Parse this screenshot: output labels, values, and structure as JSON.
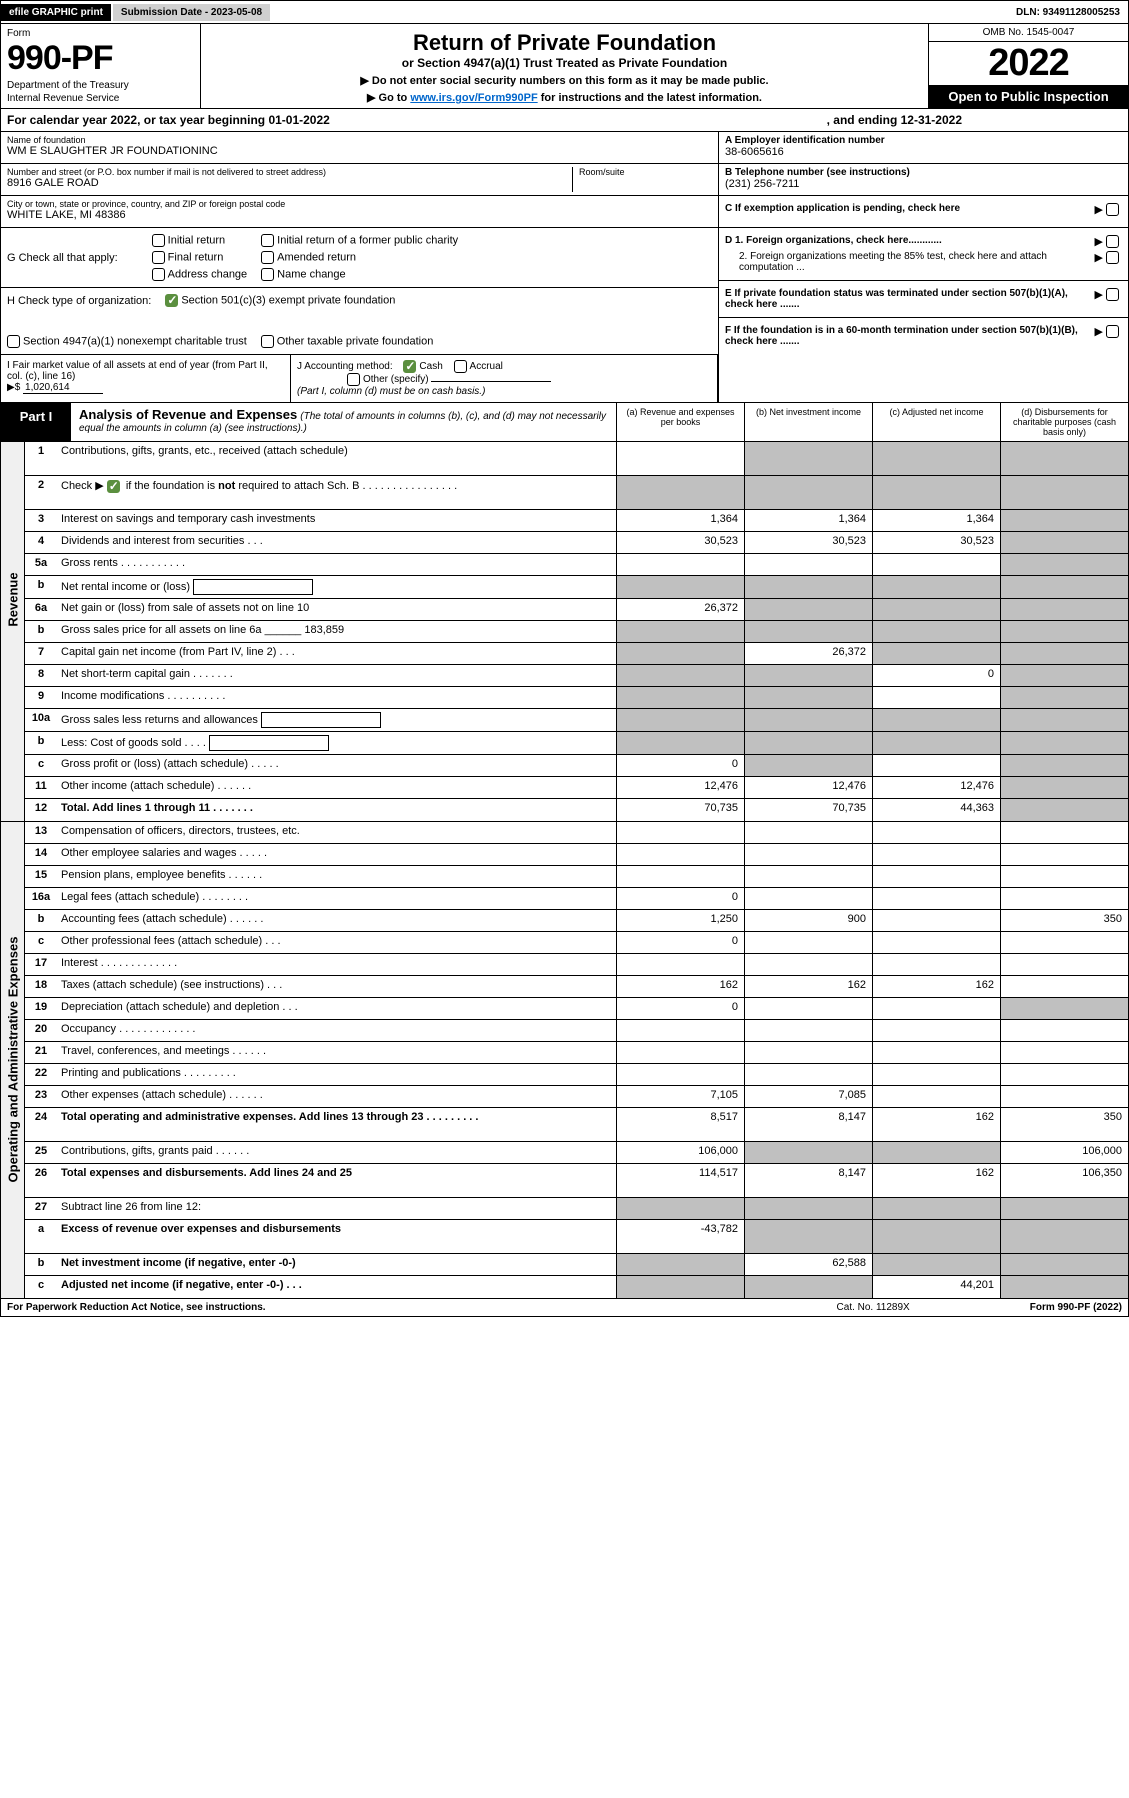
{
  "topBar": {
    "efile": "efile GRAPHIC print",
    "submission": "Submission Date - 2023-05-08",
    "dln": "DLN: 93491128005253"
  },
  "header": {
    "formLabel": "Form",
    "formNumber": "990-PF",
    "dept1": "Department of the Treasury",
    "dept2": "Internal Revenue Service",
    "title1": "Return of Private Foundation",
    "title2": "or Section 4947(a)(1) Trust Treated as Private Foundation",
    "note1": "▶ Do not enter social security numbers on this form as it may be made public.",
    "note2a": "▶ Go to ",
    "note2link": "www.irs.gov/Form990PF",
    "note2b": " for instructions and the latest information.",
    "omb": "OMB No. 1545-0047",
    "year": "2022",
    "inspection": "Open to Public Inspection"
  },
  "calYear": {
    "text": "For calendar year 2022, or tax year beginning 01-01-2022",
    "ending": ", and ending 12-31-2022"
  },
  "info": {
    "nameLabel": "Name of foundation",
    "name": "WM E SLAUGHTER JR FOUNDATIONINC",
    "addrLabel": "Number and street (or P.O. box number if mail is not delivered to street address)",
    "addr": "8916 GALE ROAD",
    "roomLabel": "Room/suite",
    "cityLabel": "City or town, state or province, country, and ZIP or foreign postal code",
    "city": "WHITE LAKE, MI  48386",
    "einLabel": "A Employer identification number",
    "ein": "38-6065616",
    "phoneLabel": "B Telephone number (see instructions)",
    "phone": "(231) 256-7211",
    "cLabel": "C If exemption application is pending, check here",
    "d1": "D 1. Foreign organizations, check here............",
    "d2": "2. Foreign organizations meeting the 85% test, check here and attach computation ...",
    "eLabel": "E  If private foundation status was terminated under section 507(b)(1)(A), check here .......",
    "fLabel": "F  If the foundation is in a 60-month termination under section 507(b)(1)(B), check here ......."
  },
  "checkG": {
    "label": "G Check all that apply:",
    "opts": [
      "Initial return",
      "Final return",
      "Address change",
      "Initial return of a former public charity",
      "Amended return",
      "Name change"
    ]
  },
  "checkH": {
    "label": "H Check type of organization:",
    "opt1": "Section 501(c)(3) exempt private foundation",
    "opt2": "Section 4947(a)(1) nonexempt charitable trust",
    "opt3": "Other taxable private foundation"
  },
  "iBlock": {
    "label": "I Fair market value of all assets at end of year (from Part II, col. (c), line 16)",
    "arrow": "▶$",
    "value": "1,020,614"
  },
  "jBlock": {
    "label": "J Accounting method:",
    "cash": "Cash",
    "accrual": "Accrual",
    "other": "Other (specify)",
    "note": "(Part I, column (d) must be on cash basis.)"
  },
  "part1": {
    "label": "Part I",
    "title": "Analysis of Revenue and Expenses",
    "sub": "(The total of amounts in columns (b), (c), and (d) may not necessarily equal the amounts in column (a) (see instructions).)",
    "colA": "(a)   Revenue and expenses per books",
    "colB": "(b)   Net investment income",
    "colC": "(c)   Adjusted net income",
    "colD": "(d)   Disbursements for charitable purposes (cash basis only)"
  },
  "sideLabels": {
    "revenue": "Revenue",
    "expenses": "Operating and Administrative Expenses"
  },
  "rows": [
    {
      "n": "1",
      "d": "Contributions, gifts, grants, etc., received (attach schedule)",
      "a": "",
      "b": "s",
      "c": "s",
      "dd": "s",
      "tall": true
    },
    {
      "n": "2",
      "d": "Check ▶ [chk] if the foundation is not required to attach Sch. B   .  .  .  .  .  .  .  .  .  .  .  .  .  .  .  .",
      "a": "s",
      "b": "s",
      "c": "s",
      "dd": "s",
      "tall": true,
      "hasCheck": true
    },
    {
      "n": "3",
      "d": "Interest on savings and temporary cash investments",
      "a": "1,364",
      "b": "1,364",
      "c": "1,364",
      "dd": "s"
    },
    {
      "n": "4",
      "d": "Dividends and interest from securities   .   .   .",
      "a": "30,523",
      "b": "30,523",
      "c": "30,523",
      "dd": "s"
    },
    {
      "n": "5a",
      "d": "Gross rents   .   .   .   .   .   .   .   .   .   .   .",
      "a": "",
      "b": "",
      "c": "",
      "dd": "s"
    },
    {
      "n": "b",
      "d": "Net rental income or (loss)  [box]",
      "a": "s",
      "b": "s",
      "c": "s",
      "dd": "s"
    },
    {
      "n": "6a",
      "d": "Net gain or (loss) from sale of assets not on line 10",
      "a": "26,372",
      "b": "s",
      "c": "s",
      "dd": "s"
    },
    {
      "n": "b",
      "d": "Gross sales price for all assets on line 6a ______ 183,859",
      "a": "s",
      "b": "s",
      "c": "s",
      "dd": "s"
    },
    {
      "n": "7",
      "d": "Capital gain net income (from Part IV, line 2)   .   .   .",
      "a": "s",
      "b": "26,372",
      "c": "s",
      "dd": "s"
    },
    {
      "n": "8",
      "d": "Net short-term capital gain   .   .   .   .   .   .   .",
      "a": "s",
      "b": "s",
      "c": "0",
      "dd": "s"
    },
    {
      "n": "9",
      "d": "Income modifications  .   .   .   .   .   .   .   .   .   .",
      "a": "s",
      "b": "s",
      "c": "",
      "dd": "s"
    },
    {
      "n": "10a",
      "d": "Gross sales less returns and allowances  [box]",
      "a": "s",
      "b": "s",
      "c": "s",
      "dd": "s"
    },
    {
      "n": "b",
      "d": "Less: Cost of goods sold   .   .   .   .   [box]",
      "a": "s",
      "b": "s",
      "c": "s",
      "dd": "s"
    },
    {
      "n": "c",
      "d": "Gross profit or (loss) (attach schedule)   .   .   .   .   .",
      "a": "0",
      "b": "s",
      "c": "",
      "dd": "s"
    },
    {
      "n": "11",
      "d": "Other income (attach schedule)   .   .   .   .   .   .",
      "a": "12,476",
      "b": "12,476",
      "c": "12,476",
      "dd": "s"
    },
    {
      "n": "12",
      "d": "Total. Add lines 1 through 11   .   .   .   .   .   .   .",
      "a": "70,735",
      "b": "70,735",
      "c": "44,363",
      "dd": "s",
      "bold": true
    },
    {
      "n": "13",
      "d": "Compensation of officers, directors, trustees, etc.",
      "a": "",
      "b": "",
      "c": "",
      "dd": ""
    },
    {
      "n": "14",
      "d": "Other employee salaries and wages   .   .   .   .   .",
      "a": "",
      "b": "",
      "c": "",
      "dd": ""
    },
    {
      "n": "15",
      "d": "Pension plans, employee benefits   .   .   .   .   .   .",
      "a": "",
      "b": "",
      "c": "",
      "dd": ""
    },
    {
      "n": "16a",
      "d": "Legal fees (attach schedule)  .   .   .   .   .   .   .   .",
      "a": "0",
      "b": "",
      "c": "",
      "dd": ""
    },
    {
      "n": "b",
      "d": "Accounting fees (attach schedule)  .   .   .   .   .   .",
      "a": "1,250",
      "b": "900",
      "c": "",
      "dd": "350"
    },
    {
      "n": "c",
      "d": "Other professional fees (attach schedule)   .   .   .",
      "a": "0",
      "b": "",
      "c": "",
      "dd": ""
    },
    {
      "n": "17",
      "d": "Interest  .   .   .   .   .   .   .   .   .   .   .   .   .",
      "a": "",
      "b": "",
      "c": "",
      "dd": ""
    },
    {
      "n": "18",
      "d": "Taxes (attach schedule) (see instructions)   .   .   .",
      "a": "162",
      "b": "162",
      "c": "162",
      "dd": ""
    },
    {
      "n": "19",
      "d": "Depreciation (attach schedule) and depletion   .   .   .",
      "a": "0",
      "b": "",
      "c": "",
      "dd": "s"
    },
    {
      "n": "20",
      "d": "Occupancy  .   .   .   .   .   .   .   .   .   .   .   .   .",
      "a": "",
      "b": "",
      "c": "",
      "dd": ""
    },
    {
      "n": "21",
      "d": "Travel, conferences, and meetings  .   .   .   .   .   .",
      "a": "",
      "b": "",
      "c": "",
      "dd": ""
    },
    {
      "n": "22",
      "d": "Printing and publications  .   .   .   .   .   .   .   .   .",
      "a": "",
      "b": "",
      "c": "",
      "dd": ""
    },
    {
      "n": "23",
      "d": "Other expenses (attach schedule)  .   .   .   .   .   .",
      "a": "7,105",
      "b": "7,085",
      "c": "",
      "dd": ""
    },
    {
      "n": "24",
      "d": "Total operating and administrative expenses. Add lines 13 through 23   .   .   .   .   .   .   .   .   .",
      "a": "8,517",
      "b": "8,147",
      "c": "162",
      "dd": "350",
      "bold": true,
      "tall": true
    },
    {
      "n": "25",
      "d": "Contributions, gifts, grants paid   .   .   .   .   .   .",
      "a": "106,000",
      "b": "s",
      "c": "s",
      "dd": "106,000"
    },
    {
      "n": "26",
      "d": "Total expenses and disbursements. Add lines 24 and 25",
      "a": "114,517",
      "b": "8,147",
      "c": "162",
      "dd": "106,350",
      "bold": true,
      "tall": true
    },
    {
      "n": "27",
      "d": "Subtract line 26 from line 12:",
      "a": "s",
      "b": "s",
      "c": "s",
      "dd": "s"
    },
    {
      "n": "a",
      "d": "Excess of revenue over expenses and disbursements",
      "a": "-43,782",
      "b": "s",
      "c": "s",
      "dd": "s",
      "bold": true,
      "tall": true
    },
    {
      "n": "b",
      "d": "Net investment income (if negative, enter -0-)",
      "a": "s",
      "b": "62,588",
      "c": "s",
      "dd": "s",
      "bold": true
    },
    {
      "n": "c",
      "d": "Adjusted net income (if negative, enter -0-)   .   .   .",
      "a": "s",
      "b": "s",
      "c": "44,201",
      "dd": "s",
      "bold": true
    }
  ],
  "footer": {
    "paperwork": "For Paperwork Reduction Act Notice, see instructions.",
    "catno": "Cat. No. 11289X",
    "formref": "Form 990-PF (2022)"
  }
}
